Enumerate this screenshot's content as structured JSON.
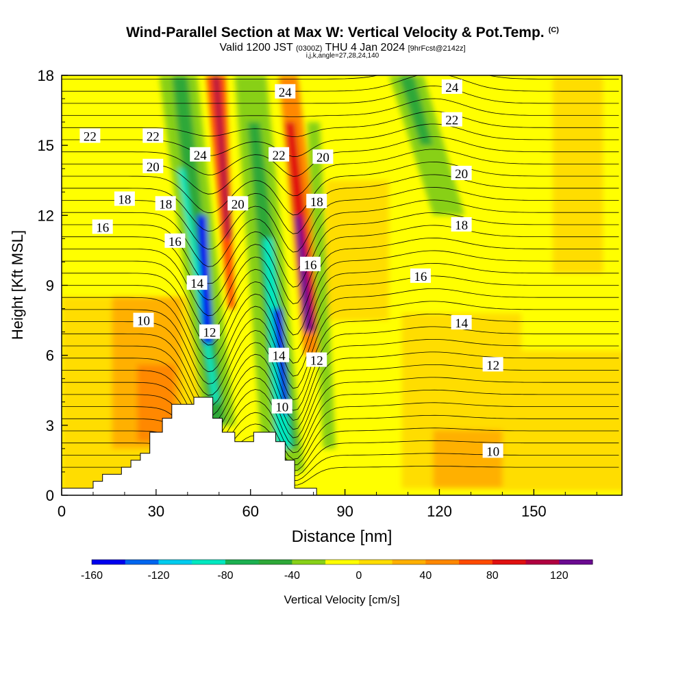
{
  "header": {
    "title": "Wind-Parallel Section at Max W: Vertical Velocity & Pot.Temp.",
    "copyright": "(C)",
    "valid_prefix": "Valid 1200 JST",
    "valid_utc": "(0300Z)",
    "valid_date": "THU 4 Jan 2024",
    "forecast": "[9hrFcst@2142z]",
    "indices": "i,j,k,angle=27,28,24,140"
  },
  "chart_data": {
    "type": "heatmap",
    "xlabel": "Distance [nm]",
    "ylabel": "Height [Kft MSL]",
    "xlim": [
      0,
      178
    ],
    "ylim": [
      0,
      18
    ],
    "x_ticks": [
      0,
      30,
      60,
      90,
      120,
      150
    ],
    "y_ticks": [
      0,
      3,
      6,
      9,
      12,
      15,
      18
    ],
    "colorbar": {
      "label": "Vertical Velocity [cm/s]",
      "levels": [
        -160,
        -140,
        -120,
        -100,
        -80,
        -60,
        -40,
        -20,
        0,
        20,
        40,
        60,
        80,
        100,
        120,
        140
      ],
      "tick_labels": [
        "-160",
        "-120",
        "-80",
        "-40",
        "0",
        "40",
        "80",
        "120"
      ],
      "colors": [
        "#0000ee",
        "#0066ee",
        "#00ccee",
        "#00e8c0",
        "#1cb050",
        "#2ea838",
        "#88d018",
        "#ffff00",
        "#ffdd00",
        "#ffb000",
        "#ff8800",
        "#ff4a00",
        "#e01010",
        "#b00040",
        "#6a0a90"
      ]
    },
    "theta_contour_labels": [
      {
        "v": "22",
        "x": 9,
        "y": 15.4
      },
      {
        "v": "22",
        "x": 29,
        "y": 15.4
      },
      {
        "v": "20",
        "x": 29,
        "y": 14.1
      },
      {
        "v": "18",
        "x": 20,
        "y": 12.7
      },
      {
        "v": "16",
        "x": 13,
        "y": 11.5
      },
      {
        "v": "18",
        "x": 33,
        "y": 12.5
      },
      {
        "v": "16",
        "x": 36,
        "y": 10.9
      },
      {
        "v": "24",
        "x": 44,
        "y": 14.6
      },
      {
        "v": "14",
        "x": 43,
        "y": 9.1
      },
      {
        "v": "12",
        "x": 47,
        "y": 7.0
      },
      {
        "v": "10",
        "x": 26,
        "y": 7.5
      },
      {
        "v": "20",
        "x": 56,
        "y": 12.5
      },
      {
        "v": "24",
        "x": 71,
        "y": 17.3
      },
      {
        "v": "22",
        "x": 69,
        "y": 14.6
      },
      {
        "v": "20",
        "x": 83,
        "y": 14.5
      },
      {
        "v": "18",
        "x": 81,
        "y": 12.6
      },
      {
        "v": "16",
        "x": 79,
        "y": 9.9
      },
      {
        "v": "14",
        "x": 69,
        "y": 6.0
      },
      {
        "v": "12",
        "x": 81,
        "y": 5.8
      },
      {
        "v": "10",
        "x": 70,
        "y": 3.8
      },
      {
        "v": "24",
        "x": 124,
        "y": 17.5
      },
      {
        "v": "22",
        "x": 124,
        "y": 16.1
      },
      {
        "v": "20",
        "x": 127,
        "y": 13.8
      },
      {
        "v": "18",
        "x": 127,
        "y": 11.6
      },
      {
        "v": "16",
        "x": 114,
        "y": 9.4
      },
      {
        "v": "14",
        "x": 127,
        "y": 7.4
      },
      {
        "v": "12",
        "x": 137,
        "y": 5.6
      },
      {
        "v": "10",
        "x": 137,
        "y": 1.9
      }
    ],
    "terrain_profile": [
      [
        0,
        0.3
      ],
      [
        10,
        0.3
      ],
      [
        10,
        0.6
      ],
      [
        13,
        0.6
      ],
      [
        13,
        0.9
      ],
      [
        19,
        0.9
      ],
      [
        19,
        1.2
      ],
      [
        22,
        1.2
      ],
      [
        22,
        1.5
      ],
      [
        25,
        1.5
      ],
      [
        25,
        1.8
      ],
      [
        28,
        1.8
      ],
      [
        28,
        2.7
      ],
      [
        32,
        2.7
      ],
      [
        32,
        3.3
      ],
      [
        35,
        3.3
      ],
      [
        35,
        3.9
      ],
      [
        42,
        3.9
      ],
      [
        42,
        4.2
      ],
      [
        48,
        4.2
      ],
      [
        48,
        3.3
      ],
      [
        51,
        3.3
      ],
      [
        51,
        2.7
      ],
      [
        55,
        2.7
      ],
      [
        55,
        2.3
      ],
      [
        61,
        2.3
      ],
      [
        61,
        2.7
      ],
      [
        68,
        2.7
      ],
      [
        68,
        2.3
      ],
      [
        71,
        2.3
      ],
      [
        71,
        1.5
      ],
      [
        74,
        1.5
      ],
      [
        74,
        0.3
      ],
      [
        81,
        0.3
      ],
      [
        81,
        0
      ]
    ]
  }
}
